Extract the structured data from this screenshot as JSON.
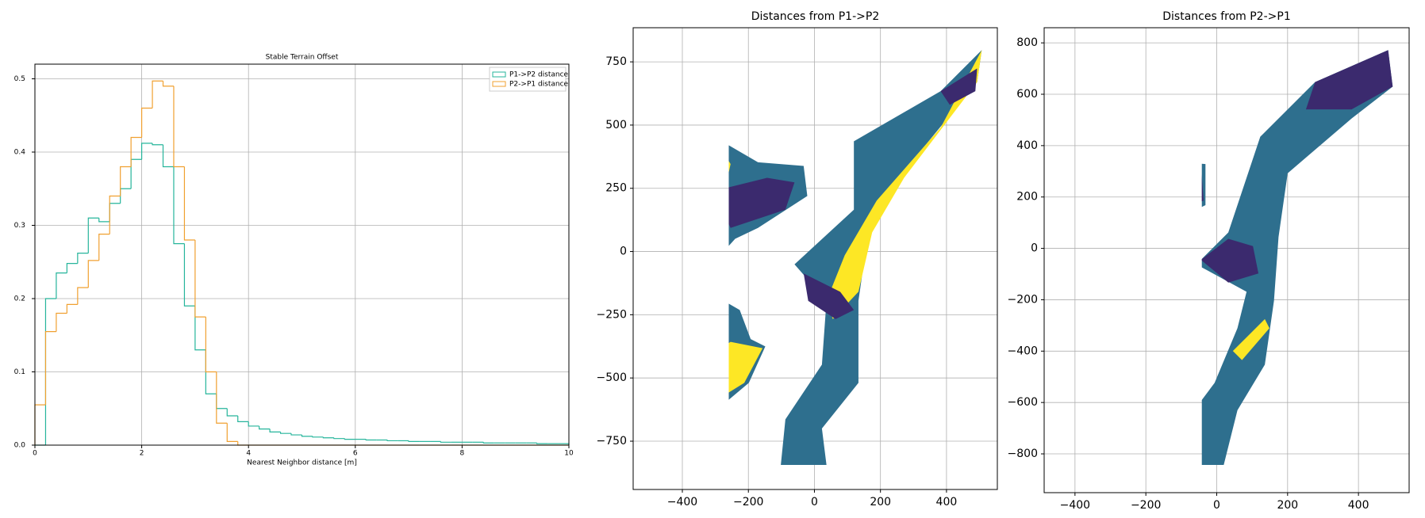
{
  "chart_data": [
    {
      "type": "histogram",
      "title": "Stable Terrain Offset",
      "xlabel": "Nearest Neighbor distance [m]",
      "bins": [
        0,
        0.2,
        0.4,
        0.6,
        0.8,
        1,
        1.2,
        1.4,
        1.6,
        1.8,
        2,
        2.2,
        2.4,
        2.6,
        2.8,
        3,
        3.2,
        3.4,
        3.6,
        3.8,
        4,
        4.2,
        4.4,
        4.6,
        4.8,
        5,
        5.2,
        5.4,
        5.6,
        5.8,
        6,
        6.2,
        6.4,
        6.6,
        6.8,
        7,
        7.2,
        7.4,
        7.6,
        7.8,
        8,
        8.2,
        8.4,
        8.6,
        8.8,
        9,
        9.2,
        9.4,
        9.6,
        9.8,
        10
      ],
      "series": [
        {
          "name": "P1->P2 distance",
          "color": "#26b59b",
          "values": [
            0,
            0.2,
            0.235,
            0.248,
            0.262,
            0.31,
            0.305,
            0.33,
            0.35,
            0.39,
            0.412,
            0.41,
            0.38,
            0.275,
            0.19,
            0.13,
            0.07,
            0.05,
            0.04,
            0.032,
            0.026,
            0.022,
            0.018,
            0.016,
            0.014,
            0.012,
            0.011,
            0.01,
            0.009,
            0.008,
            0.008,
            0.007,
            0.007,
            0.006,
            0.006,
            0.005,
            0.005,
            0.005,
            0.004,
            0.004,
            0.004,
            0.004,
            0.003,
            0.003,
            0.003,
            0.003,
            0.003,
            0.002,
            0.002,
            0.002
          ]
        },
        {
          "name": "P2->P1 distance",
          "color": "#f0a030",
          "values": [
            0.055,
            0.155,
            0.18,
            0.192,
            0.215,
            0.252,
            0.288,
            0.34,
            0.38,
            0.42,
            0.46,
            0.497,
            0.49,
            0.38,
            0.28,
            0.175,
            0.1,
            0.03,
            0.005,
            0,
            0,
            0,
            0,
            0,
            0,
            0,
            0,
            0,
            0,
            0,
            0,
            0,
            0,
            0,
            0,
            0,
            0,
            0,
            0,
            0,
            0,
            0,
            0,
            0,
            0,
            0,
            0,
            0,
            0,
            0
          ]
        }
      ],
      "xlim": [
        0,
        10
      ],
      "ylim": [
        0,
        0.52
      ],
      "xticks": [
        0,
        2,
        4,
        6,
        8,
        10
      ],
      "yticks": [
        {
          "value": 0,
          "label": "0.0"
        },
        0.1,
        0.2,
        0.3,
        0.4,
        0.5
      ],
      "grid": true,
      "legend": "upper right"
    },
    {
      "type": "map",
      "title": "Distances from P1->P2",
      "xlim": [
        -549,
        554
      ],
      "ylim": [
        -941,
        885
      ],
      "xticks": [
        {
          "value": -400,
          "label": "−400"
        },
        {
          "value": -200,
          "label": "−200"
        },
        0,
        200,
        400
      ],
      "yticks": [
        {
          "value": -750,
          "label": "−750"
        },
        {
          "value": -500,
          "label": "−500"
        },
        {
          "value": -250,
          "label": "−250"
        },
        0,
        250,
        500,
        750
      ],
      "grid": true
    },
    {
      "type": "map",
      "title": "Distances from P2->P1",
      "xlim": [
        -487,
        543
      ],
      "ylim": [
        -951,
        859
      ],
      "xticks": [
        {
          "value": -400,
          "label": "−400"
        },
        {
          "value": -200,
          "label": "−200"
        },
        0,
        200,
        400
      ],
      "yticks": [
        {
          "value": -800,
          "label": "−800"
        },
        {
          "value": -600,
          "label": "−600"
        },
        {
          "value": -400,
          "label": "−400"
        },
        {
          "value": -200,
          "label": "−200"
        },
        0,
        200,
        400,
        600,
        800
      ],
      "grid": true
    }
  ]
}
